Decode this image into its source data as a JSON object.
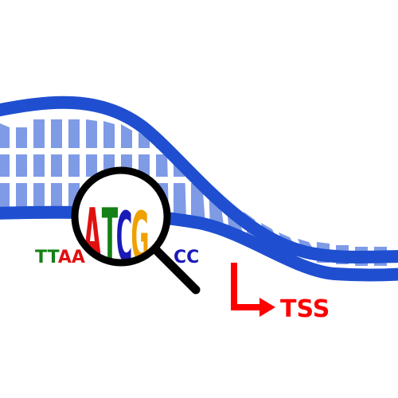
{
  "figure": {
    "sequence_left": "TTAA",
    "sequence_right": "CC",
    "logo_letters": [
      "A",
      "T",
      "C",
      "G"
    ],
    "tss_label": "TSS",
    "colors": {
      "strand": "#1f4fd0",
      "rungs": "#7f9be6",
      "A": "#e01010",
      "T": "#158015",
      "C": "#1a1ab8",
      "G": "#f0a000",
      "magnifier": "#000000",
      "tss_arrow": "#ff0000"
    },
    "icons": [
      "magnifying-glass-icon",
      "tss-arrow-icon"
    ]
  }
}
